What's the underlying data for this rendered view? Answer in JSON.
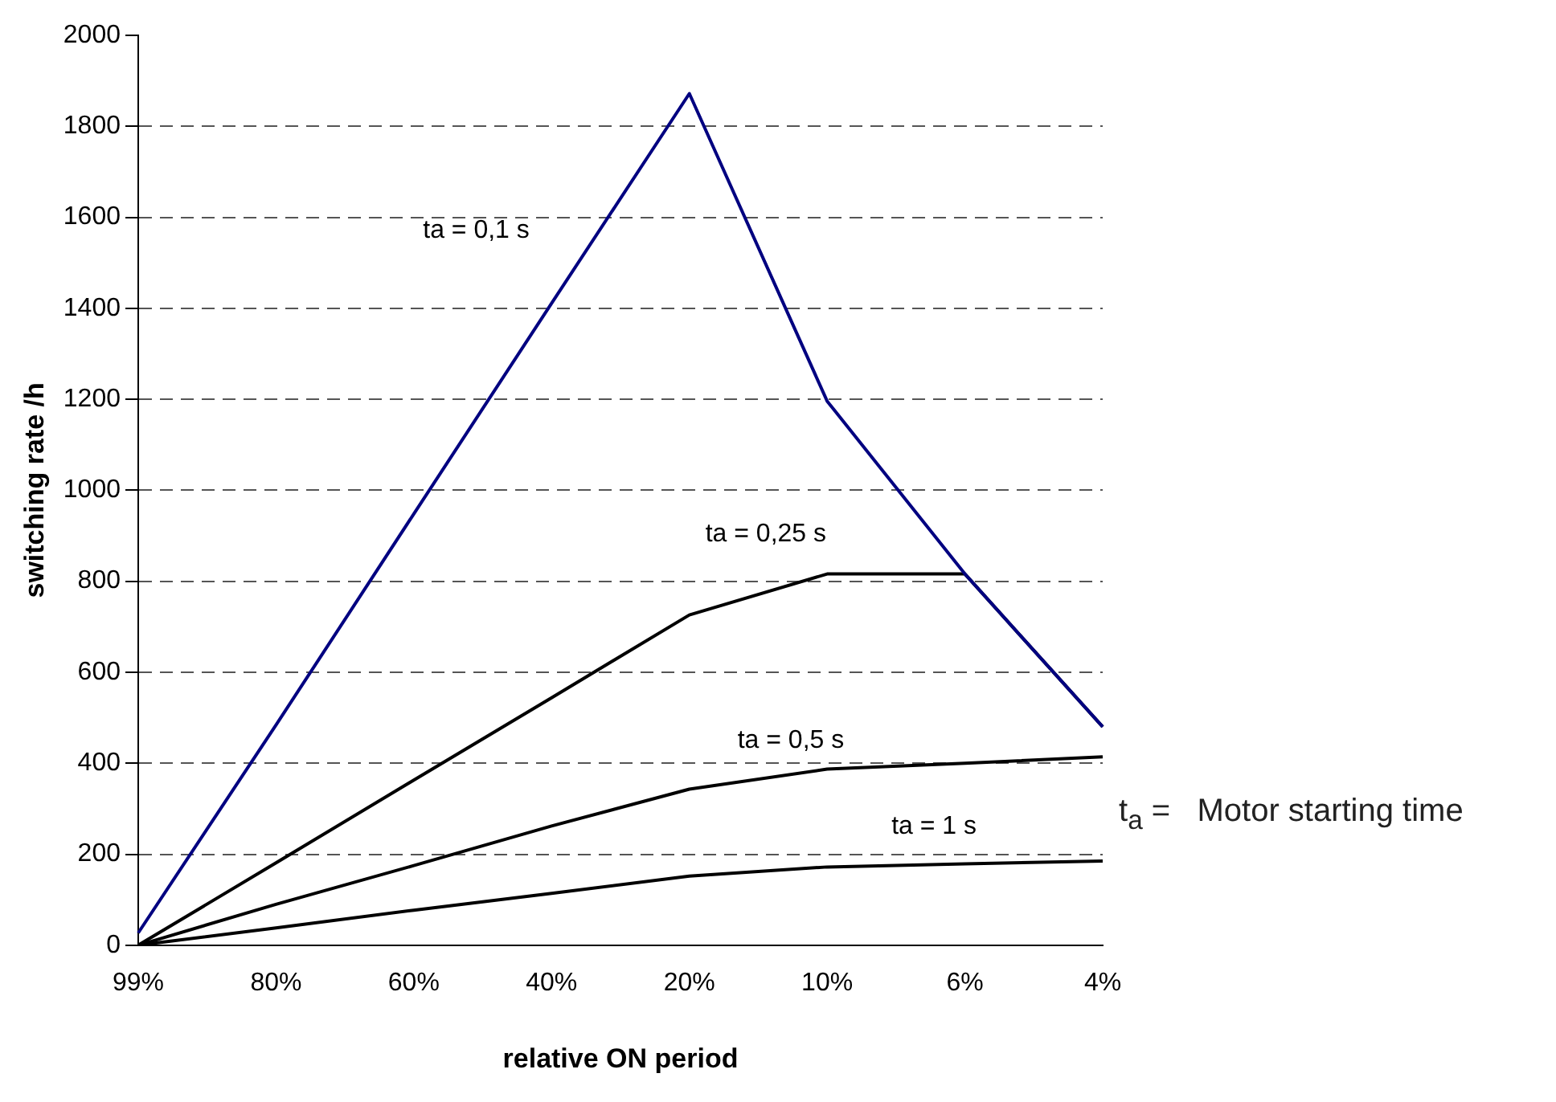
{
  "chart_data": {
    "type": "line",
    "xlabel": "relative ON period",
    "ylabel": "switching rate /h",
    "categories": [
      "99%",
      "80%",
      "60%",
      "40%",
      "20%",
      "10%",
      "6%",
      "4%"
    ],
    "series": [
      {
        "name": "ta = 0,1 s",
        "color": "#000080",
        "values": [
          27,
          484,
          948,
          1411,
          1872,
          1196,
          816,
          480
        ]
      },
      {
        "name": "ta = 0,25 s",
        "color": "#000000",
        "values": [
          0,
          181,
          363,
          544,
          726,
          816,
          816,
          480
        ]
      },
      {
        "name": "ta = 0,5 s",
        "color": "#000000",
        "values": [
          0,
          90,
          175,
          262,
          343,
          387,
          400,
          414
        ]
      },
      {
        "name": "ta = 1 s",
        "color": "#000000",
        "values": [
          0,
          38,
          77,
          114,
          152,
          172,
          179,
          185
        ]
      }
    ],
    "ylim": [
      0,
      2000
    ],
    "yticks": [
      0,
      200,
      400,
      600,
      800,
      1000,
      1200,
      1400,
      1600,
      1800,
      2000
    ],
    "grid": "y",
    "legend": false,
    "marker": "none",
    "line_style": "solid",
    "annotations": [
      "t$_{a}$ =   Motor starting time"
    ]
  }
}
